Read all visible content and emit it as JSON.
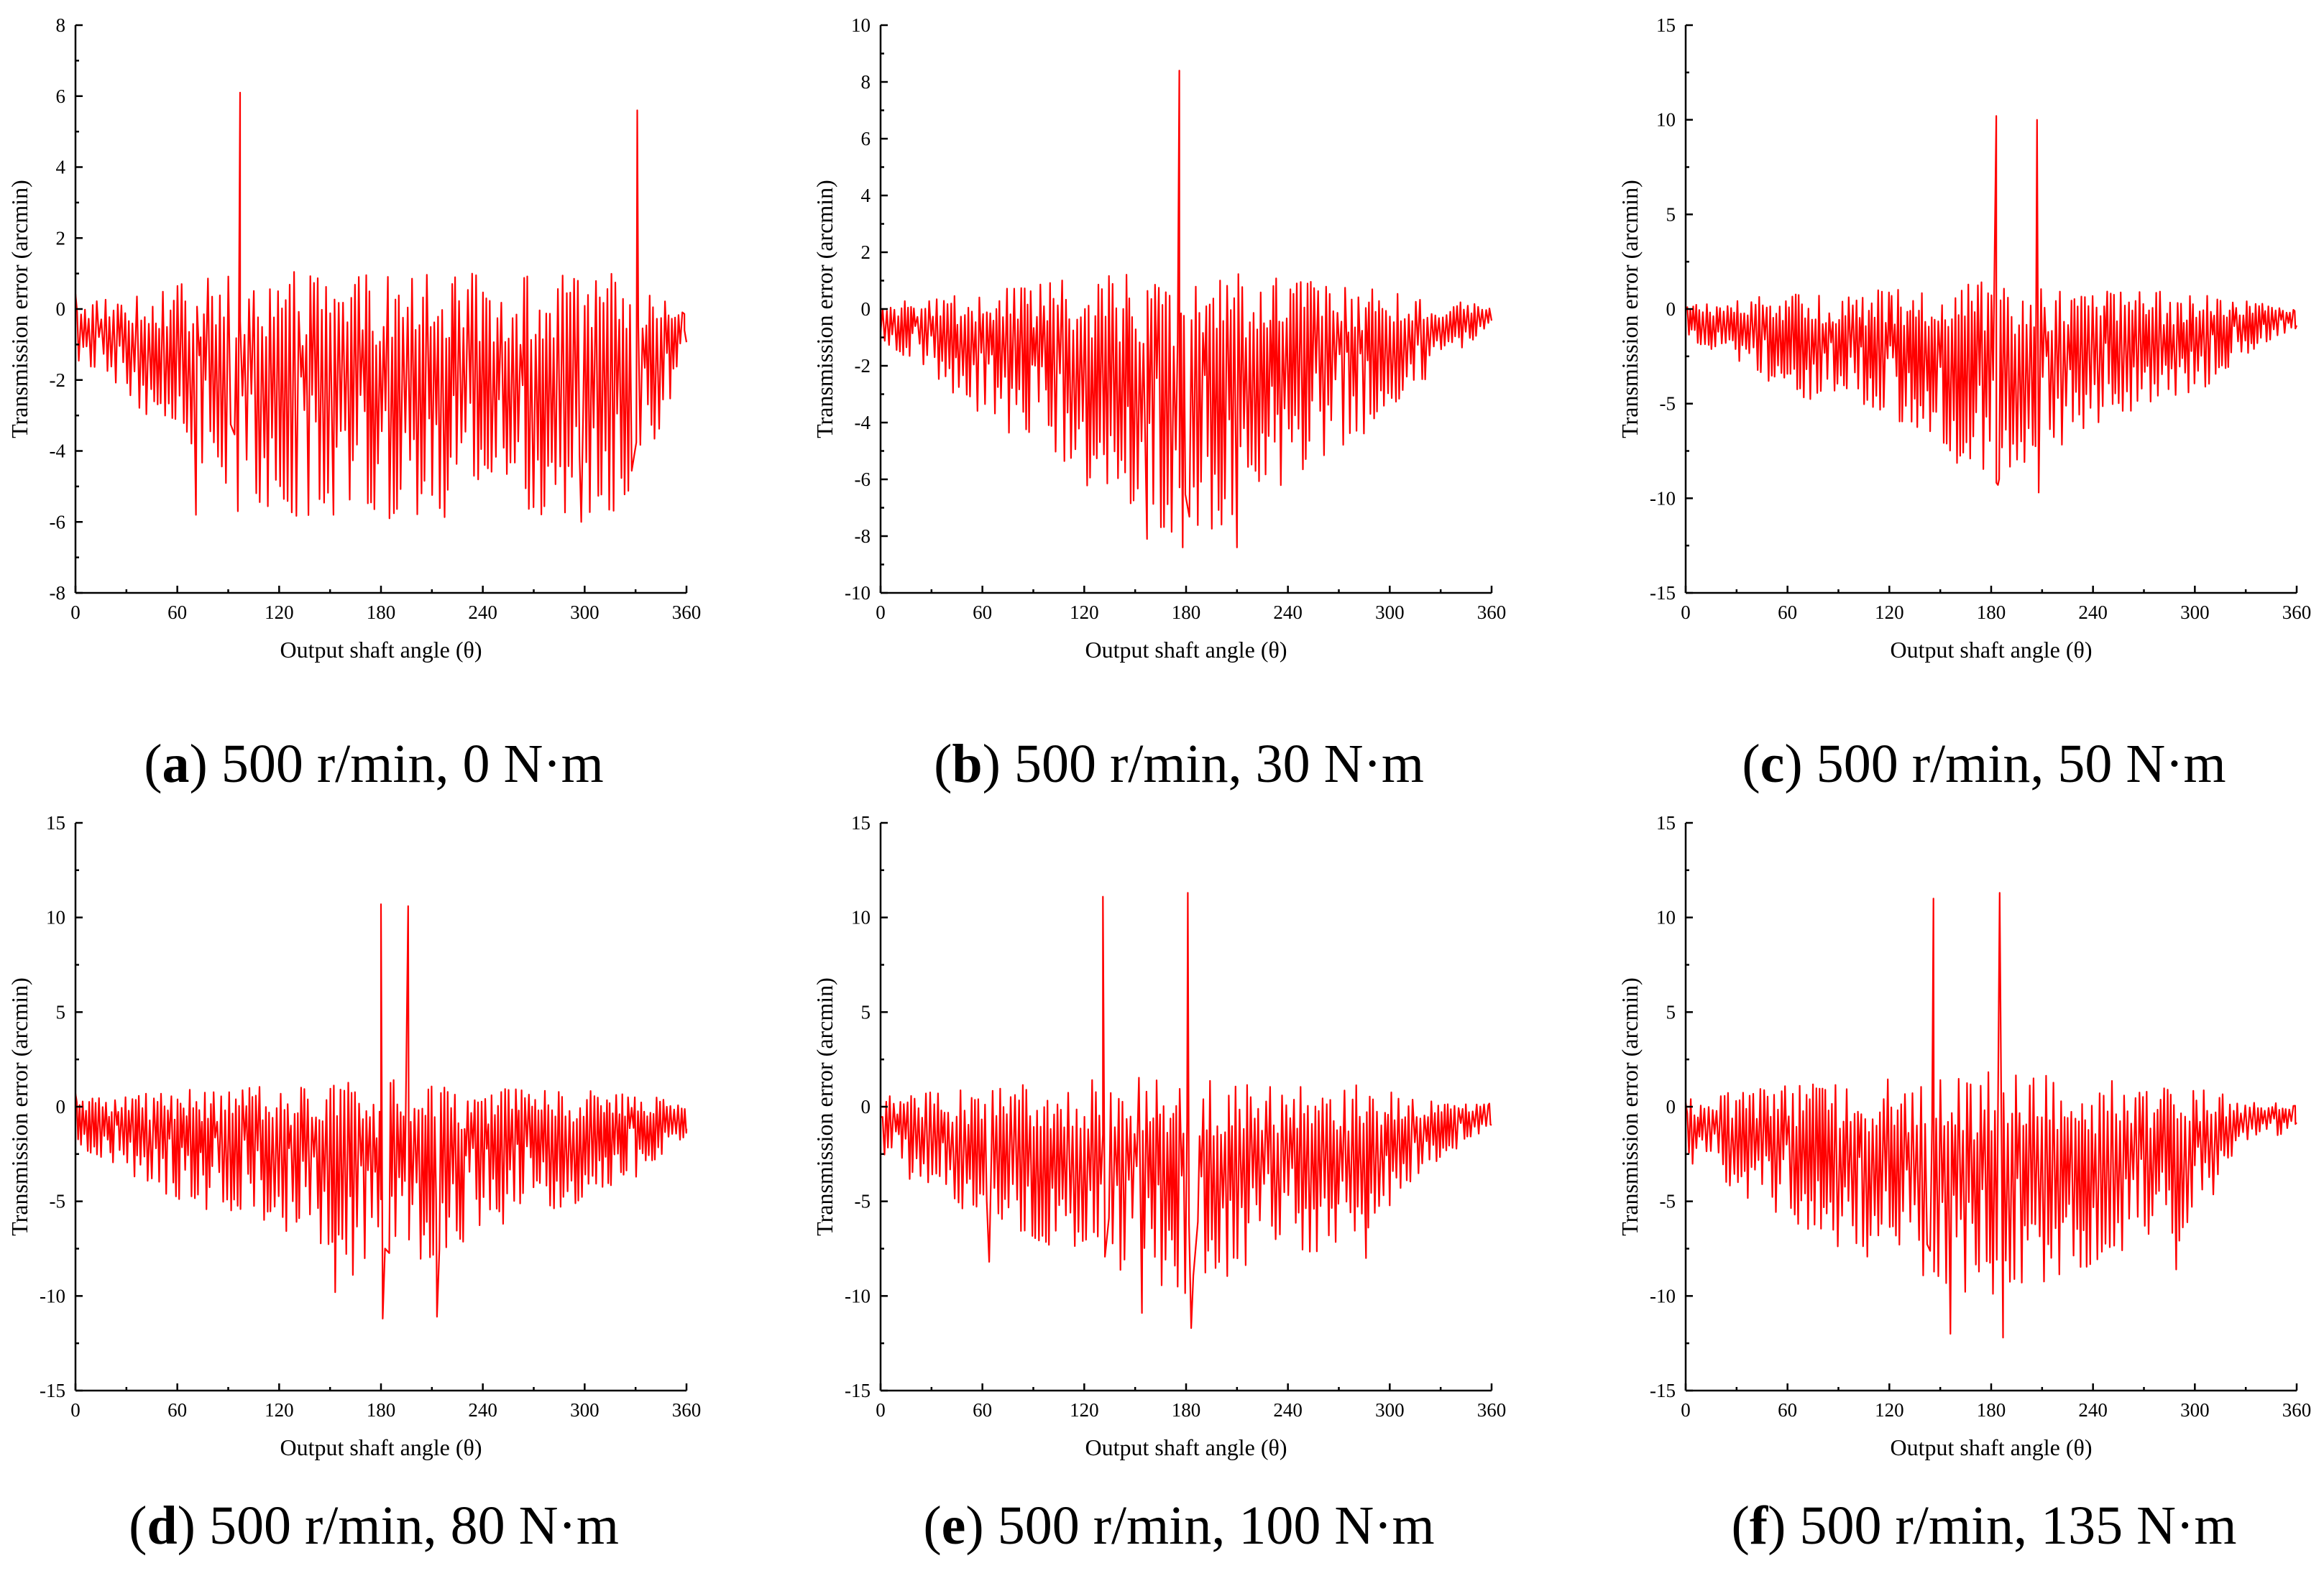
{
  "figure": {
    "caption_font_color": "#000000",
    "series_color": "#ff0000"
  },
  "chart_data": [
    {
      "type": "line",
      "label": "(a)",
      "title": "500 r/min, 0 N·m",
      "xlabel": "Output shaft angle (θ)",
      "ylabel": "Transmission error (arcmin)",
      "xlim": [
        0,
        360
      ],
      "ylim": [
        -8,
        8
      ],
      "xticks": [
        0,
        60,
        120,
        180,
        240,
        300,
        360
      ],
      "yticks": [
        -8,
        -6,
        -4,
        -2,
        0,
        2,
        4,
        6,
        8
      ],
      "series": [
        {
          "name": "Transmission error",
          "envelope": [
            [
              0,
              1.6
            ],
            [
              20,
              2.0
            ],
            [
              60,
              3.8
            ],
            [
              90,
              5.8
            ],
            [
              120,
              6.0
            ],
            [
              180,
              5.9
            ],
            [
              240,
              5.9
            ],
            [
              300,
              5.8
            ],
            [
              330,
              5.6
            ],
            [
              345,
              3.5
            ],
            [
              360,
              1.0
            ]
          ],
          "period_deg": 4.6,
          "peaks": [
            {
              "x": 97,
              "y": 6.1
            },
            {
              "x": 71,
              "y": -5.8
            },
            {
              "x": 152,
              "y": -5.8
            },
            {
              "x": 185,
              "y": -5.9
            },
            {
              "x": 298,
              "y": -6.0
            },
            {
              "x": 331,
              "y": 5.6
            }
          ]
        }
      ]
    },
    {
      "type": "line",
      "label": "(b)",
      "title": "500 r/min, 30 N·m",
      "xlabel": "Output shaft angle (θ)",
      "ylabel": "Transmission error (arcmin)",
      "xlim": [
        0,
        360
      ],
      "ylim": [
        -10,
        10
      ],
      "xticks": [
        0,
        60,
        120,
        180,
        240,
        300,
        360
      ],
      "yticks": [
        -10,
        -8,
        -6,
        -4,
        -2,
        0,
        2,
        4,
        6,
        8,
        10
      ],
      "series": [
        {
          "name": "Transmission error",
          "envelope": [
            [
              0,
              1.2
            ],
            [
              25,
              2.1
            ],
            [
              60,
              4.0
            ],
            [
              120,
              6.2
            ],
            [
              180,
              8.4
            ],
            [
              240,
              6.2
            ],
            [
              300,
              3.8
            ],
            [
              330,
              2.0
            ],
            [
              360,
              0.6
            ]
          ],
          "period_deg": 4.2,
          "peaks": [
            {
              "x": 176,
              "y": 8.4
            },
            {
              "x": 178,
              "y": -8.4
            },
            {
              "x": 210,
              "y": -8.4
            },
            {
              "x": 157,
              "y": -8.1
            }
          ]
        }
      ]
    },
    {
      "type": "line",
      "label": "(c)",
      "title": "500 r/min, 50 N·m",
      "xlabel": "Output shaft angle (θ)",
      "ylabel": "Transmission error (arcmin)",
      "xlim": [
        0,
        360
      ],
      "ylim": [
        -15,
        15
      ],
      "xticks": [
        0,
        60,
        120,
        180,
        240,
        300,
        360
      ],
      "yticks": [
        -15,
        -10,
        -5,
        0,
        5,
        10,
        15
      ],
      "series": [
        {
          "name": "Transmission error",
          "envelope": [
            [
              0,
              1.5
            ],
            [
              30,
              3.0
            ],
            [
              60,
              4.5
            ],
            [
              120,
              5.8
            ],
            [
              180,
              9.5
            ],
            [
              240,
              6.2
            ],
            [
              300,
              5.0
            ],
            [
              330,
              2.5
            ],
            [
              360,
              1.0
            ]
          ],
          "period_deg": 4.0,
          "peaks": [
            {
              "x": 183,
              "y": 10.2
            },
            {
              "x": 207,
              "y": 10.0
            },
            {
              "x": 184,
              "y": -9.3
            },
            {
              "x": 208,
              "y": -9.7
            }
          ]
        }
      ]
    },
    {
      "type": "line",
      "label": "(d)",
      "title": "500 r/min, 80 N·m",
      "xlabel": "Output shaft angle (θ)",
      "ylabel": "Transmission error (arcmin)",
      "xlim": [
        0,
        360
      ],
      "ylim": [
        -15,
        15
      ],
      "xticks": [
        0,
        60,
        120,
        180,
        240,
        300,
        360
      ],
      "yticks": [
        -15,
        -10,
        -5,
        0,
        5,
        10,
        15
      ],
      "series": [
        {
          "name": "Transmission error",
          "envelope": [
            [
              0,
              2.0
            ],
            [
              30,
              3.5
            ],
            [
              60,
              5.0
            ],
            [
              120,
              6.5
            ],
            [
              180,
              9.8
            ],
            [
              240,
              6.5
            ],
            [
              300,
              5.0
            ],
            [
              330,
              4.0
            ],
            [
              360,
              1.5
            ]
          ],
          "period_deg": 4.0,
          "peaks": [
            {
              "x": 180,
              "y": 10.7
            },
            {
              "x": 196,
              "y": 10.6
            },
            {
              "x": 181,
              "y": -11.2
            },
            {
              "x": 213,
              "y": -11.1
            },
            {
              "x": 153,
              "y": -9.8
            }
          ]
        }
      ]
    },
    {
      "type": "line",
      "label": "(e)",
      "title": "500 r/min, 100 N·m",
      "xlabel": "Output shaft angle (θ)",
      "ylabel": "Transmission error (arcmin)",
      "xlim": [
        0,
        360
      ],
      "ylim": [
        -15,
        15
      ],
      "xticks": [
        0,
        60,
        120,
        180,
        240,
        300,
        360
      ],
      "yticks": [
        -15,
        -10,
        -5,
        0,
        5,
        10,
        15
      ],
      "series": [
        {
          "name": "Transmission error",
          "envelope": [
            [
              0,
              3.0
            ],
            [
              30,
              4.5
            ],
            [
              60,
              6.0
            ],
            [
              120,
              8.0
            ],
            [
              180,
              10.0
            ],
            [
              240,
              8.0
            ],
            [
              280,
              7.5
            ],
            [
              320,
              3.5
            ],
            [
              360,
              1.0
            ]
          ],
          "period_deg": 4.3,
          "peaks": [
            {
              "x": 181,
              "y": 11.3
            },
            {
              "x": 131,
              "y": 11.1
            },
            {
              "x": 183,
              "y": -11.7
            },
            {
              "x": 154,
              "y": -10.9
            },
            {
              "x": 64,
              "y": -8.2
            },
            {
              "x": 286,
              "y": -8.0
            }
          ]
        }
      ]
    },
    {
      "type": "line",
      "label": "(f)",
      "title": "500 r/min, 135 N·m",
      "xlabel": "Output shaft angle (θ)",
      "ylabel": "Transmission error (arcmin)",
      "xlim": [
        0,
        360
      ],
      "ylim": [
        -15,
        15
      ],
      "xticks": [
        0,
        60,
        120,
        180,
        240,
        300,
        360
      ],
      "yticks": [
        -15,
        -10,
        -5,
        0,
        5,
        10,
        15
      ],
      "series": [
        {
          "name": "Transmission error",
          "envelope": [
            [
              0,
              3.0
            ],
            [
              30,
              4.5
            ],
            [
              60,
              6.5
            ],
            [
              120,
              8.5
            ],
            [
              180,
              10.5
            ],
            [
              240,
              8.5
            ],
            [
              290,
              7.5
            ],
            [
              330,
              2.5
            ],
            [
              360,
              1.0
            ]
          ],
          "period_deg": 4.3,
          "peaks": [
            {
              "x": 185,
              "y": 11.3
            },
            {
              "x": 146,
              "y": 11.0
            },
            {
              "x": 187,
              "y": -12.2
            },
            {
              "x": 156,
              "y": -12.0
            },
            {
              "x": 289,
              "y": -8.6
            }
          ]
        }
      ]
    }
  ]
}
